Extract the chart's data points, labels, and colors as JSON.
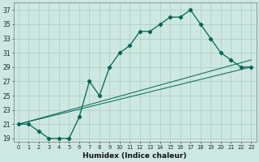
{
  "xlabel": "Humidex (Indice chaleur)",
  "background_color": "#cce8e0",
  "grid_color": "#aaccc4",
  "line_color": "#006655",
  "xlim": [
    -0.5,
    23.5
  ],
  "ylim": [
    18.5,
    38.0
  ],
  "yticks": [
    19,
    21,
    23,
    25,
    27,
    29,
    31,
    33,
    35,
    37
  ],
  "xticks": [
    0,
    1,
    2,
    3,
    4,
    5,
    6,
    7,
    8,
    9,
    10,
    11,
    12,
    13,
    14,
    15,
    16,
    17,
    18,
    19,
    20,
    21,
    22,
    23
  ],
  "line1_x": [
    0,
    1,
    2,
    3,
    4,
    5,
    6,
    7,
    8,
    9,
    10,
    11,
    12,
    13,
    14,
    15,
    16,
    17,
    18,
    19,
    20,
    21,
    22,
    23
  ],
  "line1_y": [
    21,
    21,
    20,
    19,
    19,
    19,
    22,
    27,
    25,
    29,
    31,
    32,
    34,
    34,
    35,
    36,
    36,
    37,
    35,
    33,
    31,
    30,
    29,
    29
  ],
  "line2_x": [
    0,
    23
  ],
  "line2_y": [
    21,
    30
  ],
  "line3_x": [
    0,
    23
  ],
  "line3_y": [
    21,
    29
  ]
}
